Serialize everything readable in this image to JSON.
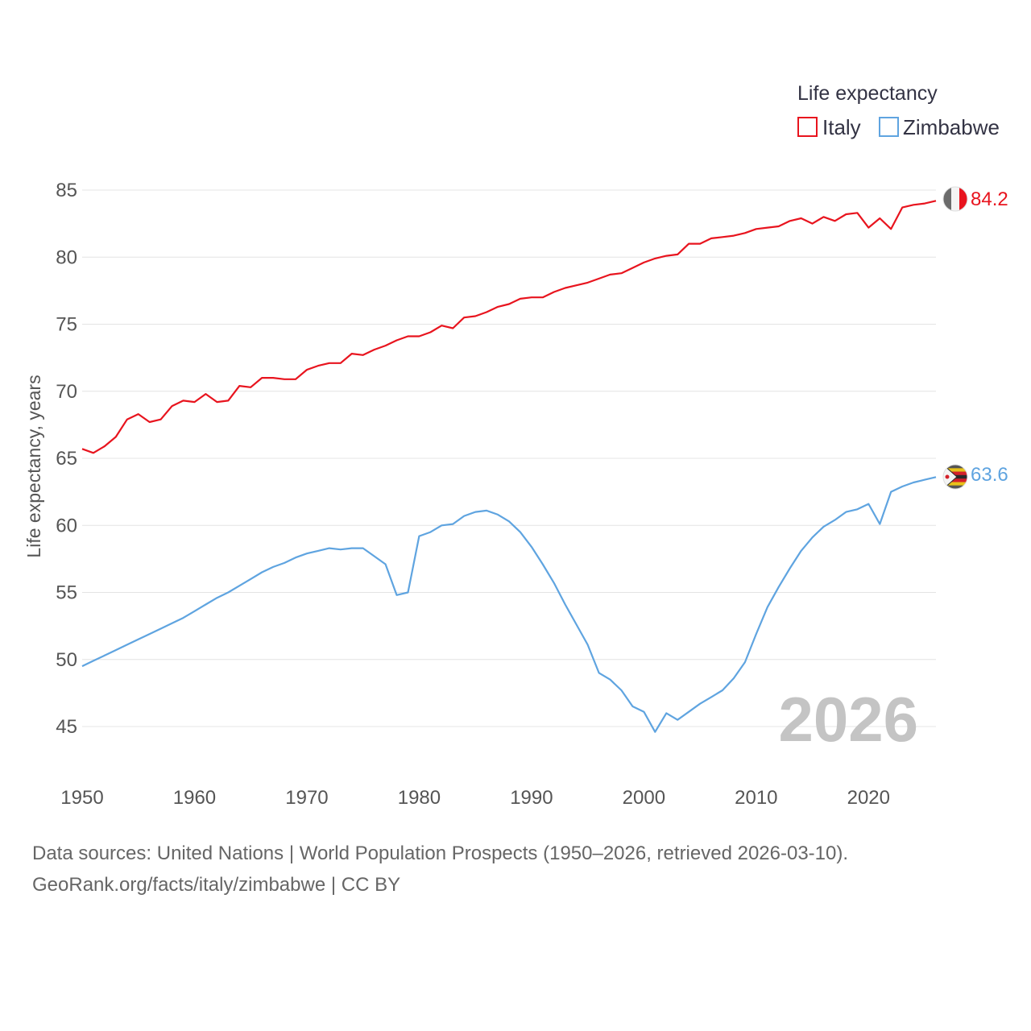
{
  "chart_data": {
    "type": "line",
    "title": "",
    "xlabel": "",
    "ylabel": "Life expectancy, years",
    "xlim": [
      1950,
      2026
    ],
    "ylim": [
      43,
      87
    ],
    "x_ticks": [
      1950,
      1960,
      1970,
      1980,
      1990,
      2000,
      2010,
      2020
    ],
    "y_ticks": [
      45,
      50,
      55,
      60,
      65,
      70,
      75,
      80,
      85
    ],
    "grid": true,
    "legend": {
      "title": "Life expectancy",
      "position": "top-right"
    },
    "year_label": "2026",
    "x": [
      1950,
      1951,
      1952,
      1953,
      1954,
      1955,
      1956,
      1957,
      1958,
      1959,
      1960,
      1961,
      1962,
      1963,
      1964,
      1965,
      1966,
      1967,
      1968,
      1969,
      1970,
      1971,
      1972,
      1973,
      1974,
      1975,
      1976,
      1977,
      1978,
      1979,
      1980,
      1981,
      1982,
      1983,
      1984,
      1985,
      1986,
      1987,
      1988,
      1989,
      1990,
      1991,
      1992,
      1993,
      1994,
      1995,
      1996,
      1997,
      1998,
      1999,
      2000,
      2001,
      2002,
      2003,
      2004,
      2005,
      2006,
      2007,
      2008,
      2009,
      2010,
      2011,
      2012,
      2013,
      2014,
      2015,
      2016,
      2017,
      2018,
      2019,
      2020,
      2021,
      2022,
      2023,
      2024,
      2025,
      2026
    ],
    "series": [
      {
        "name": "Italy",
        "color": "#e8141e",
        "end_label": "84.2",
        "values": [
          65.7,
          65.4,
          65.9,
          66.6,
          67.9,
          68.3,
          67.7,
          67.9,
          68.9,
          69.3,
          69.2,
          69.8,
          69.2,
          69.3,
          70.4,
          70.3,
          71.0,
          71.0,
          70.9,
          70.9,
          71.6,
          71.9,
          72.1,
          72.1,
          72.8,
          72.7,
          73.1,
          73.4,
          73.8,
          74.1,
          74.1,
          74.4,
          74.9,
          74.7,
          75.5,
          75.6,
          75.9,
          76.3,
          76.5,
          76.9,
          77.0,
          77.0,
          77.4,
          77.7,
          77.9,
          78.1,
          78.4,
          78.7,
          78.8,
          79.2,
          79.6,
          79.9,
          80.1,
          80.2,
          81.0,
          81.0,
          81.4,
          81.5,
          81.6,
          81.8,
          82.1,
          82.2,
          82.3,
          82.7,
          82.9,
          82.5,
          83.0,
          82.7,
          83.2,
          83.3,
          82.2,
          82.9,
          82.1,
          83.7,
          83.9,
          84.0,
          84.2
        ]
      },
      {
        "name": "Zimbabwe",
        "color": "#5fa4e0",
        "end_label": "63.6",
        "values": [
          49.5,
          49.9,
          50.3,
          50.7,
          51.1,
          51.5,
          51.9,
          52.3,
          52.7,
          53.1,
          53.6,
          54.1,
          54.6,
          55.0,
          55.5,
          56.0,
          56.5,
          56.9,
          57.2,
          57.6,
          57.9,
          58.1,
          58.3,
          58.2,
          58.3,
          58.3,
          57.7,
          57.1,
          54.8,
          55.0,
          59.2,
          59.5,
          60.0,
          60.1,
          60.7,
          61.0,
          61.1,
          60.8,
          60.3,
          59.5,
          58.4,
          57.1,
          55.7,
          54.1,
          52.6,
          51.1,
          49.0,
          48.5,
          47.7,
          46.5,
          46.1,
          44.6,
          46.0,
          45.5,
          46.1,
          46.7,
          47.2,
          47.7,
          48.6,
          49.8,
          51.9,
          53.9,
          55.4,
          56.8,
          58.1,
          59.1,
          59.9,
          60.4,
          61.0,
          61.2,
          61.6,
          60.1,
          62.5,
          62.9,
          63.2,
          63.4,
          63.6
        ]
      }
    ]
  },
  "footer": {
    "line1": "Data sources: United Nations | World Population Prospects (1950–2026, retrieved 2026-03-10).",
    "line2": "GeoRank.org/facts/italy/zimbabwe | CC BY"
  }
}
